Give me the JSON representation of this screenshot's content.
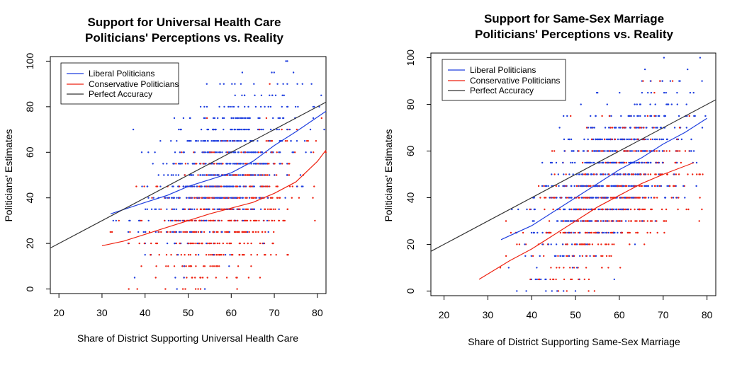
{
  "chart_data": [
    {
      "type": "scatter",
      "title": "Support for Universal Health Care",
      "subtitle": "Politicians' Perceptions vs. Reality",
      "xlabel": "Share of District Supporting Universal Health Care",
      "ylabel": "Politicians' Estimates",
      "xlim": [
        18,
        82
      ],
      "ylim": [
        -2,
        102
      ],
      "xticks": [
        "20",
        "30",
        "40",
        "50",
        "60",
        "70",
        "80"
      ],
      "yticks": [
        "0",
        "20",
        "40",
        "60",
        "80",
        "100"
      ],
      "grid": false,
      "legend_position": "top-left",
      "series": [
        {
          "name": "Liberal Politicians",
          "color": "#1f3fdf",
          "line": [
            [
              32,
              33
            ],
            [
              40,
              38
            ],
            [
              45,
              41
            ],
            [
              50,
              45
            ],
            [
              55,
              48
            ],
            [
              60,
              51
            ],
            [
              65,
              56
            ],
            [
              70,
              63
            ],
            [
              75,
              69
            ],
            [
              82,
              78
            ]
          ]
        },
        {
          "name": "Conservative Politicians",
          "color": "#ee2211",
          "line": [
            [
              30,
              19
            ],
            [
              35,
              21
            ],
            [
              40,
              24
            ],
            [
              45,
              27
            ],
            [
              50,
              30
            ],
            [
              55,
              33
            ],
            [
              60,
              35.5
            ],
            [
              65,
              38
            ],
            [
              70,
              42
            ],
            [
              75,
              47
            ],
            [
              80,
              56
            ],
            [
              82,
              61
            ]
          ]
        },
        {
          "name": "Perfect Accuracy",
          "color": "#333333",
          "line": [
            [
              18,
              18
            ],
            [
              82,
              82
            ]
          ]
        }
      ]
    },
    {
      "type": "scatter",
      "title": "Support for Same-Sex Marriage",
      "subtitle": "Politicians' Perceptions vs. Reality",
      "xlabel": "Share of District Supporting Same-Sex Marriage",
      "ylabel": "Politicians' Estimates",
      "xlim": [
        17,
        82
      ],
      "ylim": [
        -2,
        102
      ],
      "xticks": [
        "20",
        "30",
        "40",
        "50",
        "60",
        "70",
        "80"
      ],
      "yticks": [
        "0",
        "20",
        "40",
        "60",
        "80",
        "100"
      ],
      "grid": false,
      "legend_position": "top-left",
      "series": [
        {
          "name": "Liberal Politicians",
          "color": "#1f3fdf",
          "line": [
            [
              33,
              22
            ],
            [
              40,
              28
            ],
            [
              45,
              34
            ],
            [
              50,
              40
            ],
            [
              55,
              46
            ],
            [
              60,
              52
            ],
            [
              65,
              57
            ],
            [
              70,
              63
            ],
            [
              75,
              68
            ],
            [
              80,
              74
            ]
          ]
        },
        {
          "name": "Conservative Politicians",
          "color": "#ee2211",
          "line": [
            [
              28,
              5
            ],
            [
              35,
              13
            ],
            [
              40,
              18
            ],
            [
              45,
              24
            ],
            [
              50,
              30
            ],
            [
              55,
              36
            ],
            [
              60,
              41
            ],
            [
              65,
              46
            ],
            [
              70,
              50
            ],
            [
              77,
              55
            ]
          ]
        },
        {
          "name": "Perfect Accuracy",
          "color": "#333333",
          "line": [
            [
              17,
              17
            ],
            [
              82,
              82
            ]
          ]
        }
      ]
    }
  ]
}
